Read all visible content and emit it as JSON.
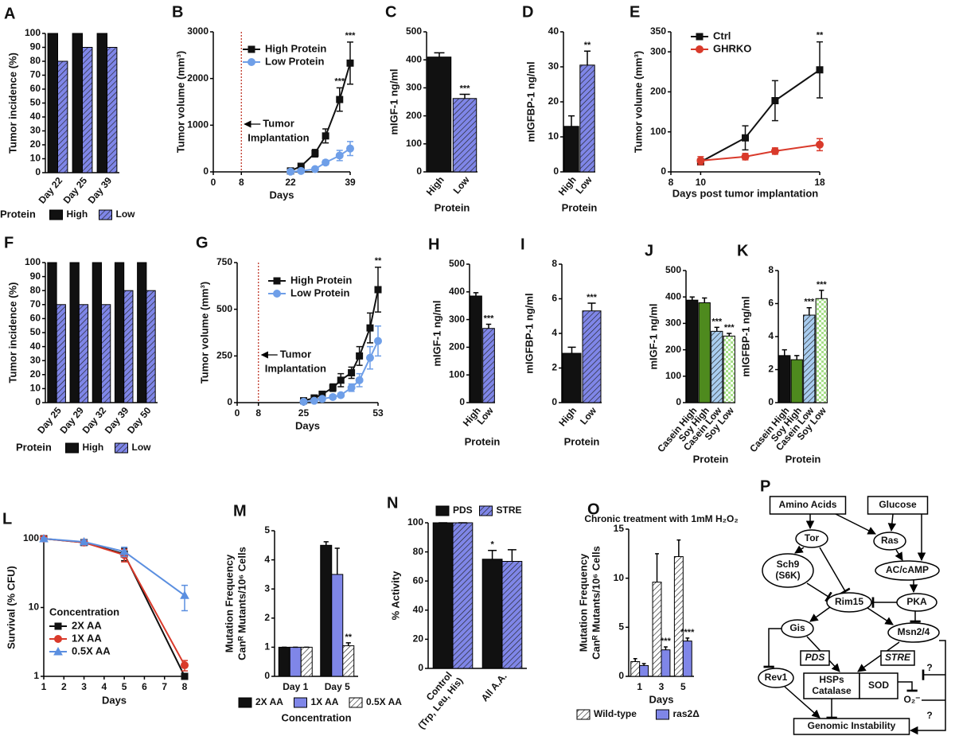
{
  "chart_data": [
    {
      "panel": "A",
      "type": "bar",
      "ylabel": "Tumor incidence (%)",
      "categories": [
        "Day 22",
        "Day 25",
        "Day 39"
      ],
      "series": [
        {
          "name": "High",
          "color": "#111111",
          "values": [
            100,
            100,
            100
          ]
        },
        {
          "name": "Low",
          "color": "#7f86e8",
          "pattern": "hatch",
          "values": [
            80,
            90,
            90
          ]
        }
      ],
      "ylim": [
        0,
        100
      ],
      "yticks": [
        0,
        10,
        20,
        30,
        40,
        50,
        60,
        70,
        80,
        90,
        100
      ],
      "legend": "bottom",
      "legend_title": "Protein"
    },
    {
      "panel": "B",
      "type": "line",
      "xlabel": "Days",
      "ylabel": "Tumor volume (mm³)",
      "x": [
        22,
        25,
        29,
        32,
        36,
        39
      ],
      "series": [
        {
          "name": "High Protein",
          "color": "#111111",
          "marker": "square",
          "values": [
            20,
            120,
            400,
            770,
            1550,
            2330
          ],
          "errors": [
            10,
            30,
            80,
            150,
            250,
            450
          ],
          "sig": [
            null,
            null,
            null,
            null,
            "***",
            "***"
          ]
        },
        {
          "name": "Low Protein",
          "color": "#6f9fe8",
          "marker": "circle",
          "values": [
            5,
            20,
            60,
            200,
            350,
            500
          ],
          "errors": [
            3,
            10,
            20,
            50,
            110,
            150
          ]
        }
      ],
      "xlim": [
        0,
        39
      ],
      "xticks": [
        0,
        8,
        22,
        39
      ],
      "ylim": [
        0,
        3000
      ],
      "yticks": [
        0,
        1000,
        2000,
        3000
      ],
      "vline": 8,
      "vline_label": [
        "Tumor",
        "Implantation"
      ],
      "legend": "upper left"
    },
    {
      "panel": "C",
      "type": "bar",
      "xlabel": "Protein",
      "ylabel": "mIGF-1 ng/ml",
      "categories": [
        "High",
        "Low"
      ],
      "values": [
        410,
        262
      ],
      "errors": [
        15,
        15
      ],
      "sig": [
        null,
        "***"
      ],
      "colors": [
        "#111111",
        "#7f86e8"
      ],
      "patterns": [
        null,
        "hatch"
      ],
      "ylim": [
        0,
        500
      ],
      "yticks": [
        0,
        100,
        200,
        300,
        400,
        500
      ]
    },
    {
      "panel": "D",
      "type": "bar",
      "xlabel": "Protein",
      "ylabel": "mIGFBP-1 ng/ml",
      "categories": [
        "High",
        "Low"
      ],
      "values": [
        13,
        30.5
      ],
      "errors": [
        3,
        4
      ],
      "sig": [
        null,
        "**"
      ],
      "colors": [
        "#111111",
        "#7f86e8"
      ],
      "patterns": [
        null,
        "hatch"
      ],
      "ylim": [
        0,
        40
      ],
      "yticks": [
        0,
        10,
        20,
        30,
        40
      ]
    },
    {
      "panel": "E",
      "type": "line",
      "xlabel": "Days post tumor implantation",
      "ylabel": "Tumor volume (mm³)",
      "x": [
        10,
        13,
        15,
        18
      ],
      "series": [
        {
          "name": "Ctrl",
          "color": "#111111",
          "marker": "square",
          "values": [
            25,
            85,
            178,
            255
          ],
          "errors": [
            5,
            30,
            50,
            70
          ],
          "sig": [
            null,
            null,
            null,
            "**"
          ]
        },
        {
          "name": "GHRKO",
          "color": "#d93a2b",
          "marker": "circle",
          "values": [
            28,
            38,
            52,
            68
          ],
          "errors": [
            10,
            8,
            8,
            15
          ]
        }
      ],
      "xlim": [
        8,
        18
      ],
      "xticks": [
        8,
        10,
        18
      ],
      "ylim": [
        0,
        350
      ],
      "yticks": [
        0,
        100,
        200,
        300,
        350
      ],
      "legend": "upper left"
    },
    {
      "panel": "F",
      "type": "bar",
      "ylabel": "Tumor incidence (%)",
      "categories": [
        "Day 25",
        "Day 29",
        "Day 32",
        "Day 39",
        "Day 50"
      ],
      "series": [
        {
          "name": "High",
          "color": "#111111",
          "values": [
            100,
            100,
            100,
            100,
            100
          ]
        },
        {
          "name": "Low",
          "color": "#7f86e8",
          "pattern": "hatch",
          "values": [
            70,
            70,
            70,
            80,
            80
          ]
        }
      ],
      "ylim": [
        0,
        100
      ],
      "yticks": [
        0,
        10,
        20,
        30,
        40,
        50,
        60,
        70,
        80,
        90,
        100
      ],
      "legend": "bottom",
      "legend_title": "Protein"
    },
    {
      "panel": "G",
      "type": "line",
      "xlabel": "Days",
      "ylabel": "Tumor volume (mm³)",
      "x": [
        25,
        29,
        32,
        36,
        39,
        43,
        46,
        50,
        53
      ],
      "series": [
        {
          "name": "High Protein",
          "color": "#111111",
          "marker": "square",
          "values": [
            10,
            25,
            45,
            80,
            120,
            160,
            250,
            400,
            605
          ],
          "errors": [
            5,
            8,
            10,
            20,
            35,
            30,
            50,
            80,
            120
          ],
          "sig": [
            null,
            null,
            null,
            null,
            null,
            null,
            null,
            null,
            "**"
          ]
        },
        {
          "name": "Low Protein",
          "color": "#6f9fe8",
          "marker": "circle",
          "values": [
            5,
            10,
            20,
            30,
            40,
            80,
            120,
            240,
            330
          ],
          "errors": [
            3,
            5,
            5,
            8,
            10,
            20,
            35,
            60,
            80
          ]
        }
      ],
      "xlim": [
        0,
        53
      ],
      "xticks": [
        0,
        8,
        25,
        53
      ],
      "ylim": [
        0,
        750
      ],
      "yticks": [
        0,
        250,
        500,
        750
      ],
      "vline": 8,
      "vline_label": [
        "Tumor",
        "Implantation"
      ],
      "legend": "upper left"
    },
    {
      "panel": "H",
      "type": "bar",
      "xlabel": "Protein",
      "ylabel": "mIGF-1 ng/ml",
      "categories": [
        "High",
        "Low"
      ],
      "values": [
        385,
        268
      ],
      "errors": [
        12,
        15
      ],
      "sig": [
        null,
        "***"
      ],
      "colors": [
        "#111111",
        "#7f86e8"
      ],
      "patterns": [
        null,
        "hatch"
      ],
      "ylim": [
        0,
        500
      ],
      "yticks": [
        0,
        100,
        200,
        300,
        400,
        500
      ]
    },
    {
      "panel": "I",
      "type": "bar",
      "xlabel": "Protein",
      "ylabel": "mIGFBP-1 ng/ml",
      "categories": [
        "High",
        "Low"
      ],
      "values": [
        2.85,
        5.3
      ],
      "errors": [
        0.35,
        0.45
      ],
      "sig": [
        null,
        "***"
      ],
      "colors": [
        "#111111",
        "#7f86e8"
      ],
      "patterns": [
        null,
        "hatch"
      ],
      "ylim": [
        0,
        8
      ],
      "yticks": [
        0,
        2,
        4,
        6,
        8
      ]
    },
    {
      "panel": "J",
      "type": "bar",
      "xlabel": "Protein",
      "ylabel": "mIGF-1 ng/ml",
      "categories": [
        "Casein High",
        "Soy High",
        "Casein Low",
        "Soy Low"
      ],
      "values": [
        388,
        378,
        270,
        252
      ],
      "errors": [
        12,
        18,
        15,
        10
      ],
      "sig": [
        null,
        null,
        "***",
        "***"
      ],
      "colors": [
        "#111111",
        "#4e8a1e",
        "#a9cdf0",
        "#a8e08a"
      ],
      "patterns": [
        null,
        null,
        "hatch",
        "check"
      ],
      "ylim": [
        0,
        500
      ],
      "yticks": [
        0,
        100,
        200,
        300,
        400,
        500
      ]
    },
    {
      "panel": "K",
      "type": "bar",
      "xlabel": "Protein",
      "ylabel": "mIGFBP-1 ng/ml",
      "categories": [
        "Casein High",
        "Soy High",
        "Casein Low",
        "Soy Low"
      ],
      "values": [
        2.85,
        2.6,
        5.3,
        6.3
      ],
      "errors": [
        0.35,
        0.25,
        0.45,
        0.5
      ],
      "sig": [
        null,
        null,
        "***",
        "***"
      ],
      "colors": [
        "#111111",
        "#4e8a1e",
        "#a9cdf0",
        "#a8e08a"
      ],
      "patterns": [
        null,
        null,
        "hatch",
        "check"
      ],
      "ylim": [
        0,
        8
      ],
      "yticks": [
        0,
        2,
        4,
        6,
        8
      ]
    },
    {
      "panel": "L",
      "type": "line",
      "xlabel": "Days",
      "ylabel": "Survival (% CFU)",
      "x": [
        1,
        3,
        5,
        8
      ],
      "series": [
        {
          "name": "2X AA",
          "color": "#111111",
          "marker": "square",
          "values": [
            100,
            88,
            60,
            1
          ],
          "errors": [
            3,
            6,
            12,
            0
          ]
        },
        {
          "name": "1X AA",
          "color": "#d93a2b",
          "marker": "circle",
          "values": [
            100,
            88,
            58,
            1.45
          ],
          "errors": [
            3,
            6,
            12,
            0.25
          ]
        },
        {
          "name": "0.5X AA",
          "color": "#5b8fe0",
          "marker": "triangle",
          "values": [
            100,
            90,
            65,
            15
          ],
          "errors": [
            3,
            6,
            10,
            6
          ]
        }
      ],
      "xlim": [
        1,
        8
      ],
      "xticks": [
        1,
        2,
        3,
        4,
        5,
        6,
        7,
        8
      ],
      "ylim": [
        1,
        100
      ],
      "yticks": [
        1,
        10,
        100
      ],
      "log_y": true,
      "legend": "lower left",
      "legend_title": "Concentration"
    },
    {
      "panel": "M",
      "type": "bar",
      "xlabel": "Concentration",
      "ylabel": [
        "Mutation Frequency",
        "Canᴿ Mutants/10⁶ Cells"
      ],
      "categories": [
        "Day 1",
        "Day 5"
      ],
      "series": [
        {
          "name": "2X AA",
          "color": "#111111",
          "values": [
            1,
            4.5
          ],
          "errors": [
            0,
            0.12
          ]
        },
        {
          "name": "1X AA",
          "color": "#7f86e8",
          "values": [
            1,
            3.5
          ],
          "errors": [
            0,
            0.9
          ]
        },
        {
          "name": "0.5X AA",
          "color": "#ffffff",
          "pattern": "hatch",
          "values": [
            1,
            1.05
          ],
          "errors": [
            0,
            0.1
          ],
          "sig": [
            null,
            "**"
          ]
        }
      ],
      "ylim": [
        0,
        5
      ],
      "yticks": [
        0,
        1,
        2,
        3,
        4,
        5
      ],
      "legend": "bottom"
    },
    {
      "panel": "N",
      "type": "bar",
      "ylabel": "% Activity",
      "categories": [
        "Control (Trp, Leu, His)",
        "All A.A."
      ],
      "series": [
        {
          "name": "PDS",
          "color": "#111111",
          "values": [
            100,
            75
          ],
          "errors": [
            0,
            6
          ],
          "sig": [
            null,
            "*"
          ]
        },
        {
          "name": "STRE",
          "color": "#7f86e8",
          "pattern": "hatch",
          "values": [
            100,
            73.5
          ],
          "errors": [
            0,
            8
          ]
        }
      ],
      "ylim": [
        0,
        100
      ],
      "yticks": [
        0,
        20,
        40,
        60,
        80,
        100
      ],
      "legend": "top"
    },
    {
      "panel": "O",
      "type": "bar",
      "title": "Chronic treatment with 1mM H₂O₂",
      "xlabel": "Days",
      "ylabel": [
        "Mutation Frequency",
        "Canᴿ Mutants/10⁶ Cells"
      ],
      "categories": [
        "1",
        "3",
        "5"
      ],
      "series": [
        {
          "name": "Wild-type",
          "color": "#ffffff",
          "pattern": "hatch",
          "values": [
            1.5,
            9.6,
            12.2
          ],
          "errors": [
            0.3,
            2.9,
            1.7
          ]
        },
        {
          "name": "ras2Δ",
          "color": "#7f86e8",
          "values": [
            1.1,
            2.7,
            3.6
          ],
          "errors": [
            0.2,
            0.3,
            0.3
          ],
          "sig": [
            null,
            "***",
            "****"
          ]
        }
      ],
      "ylim": [
        0,
        15
      ],
      "yticks": [
        0,
        5,
        10,
        15
      ],
      "legend": "bottom"
    }
  ],
  "diagram": {
    "panel": "P",
    "nodes": [
      {
        "label": "Amino Acids"
      },
      {
        "label": "Glucose"
      },
      {
        "label": "Tor"
      },
      {
        "label": "Ras"
      },
      {
        "label": [
          "Sch9",
          "(S6K)"
        ]
      },
      {
        "label": "AC/cAMP"
      },
      {
        "label": "Rim15"
      },
      {
        "label": "PKA"
      },
      {
        "label": "Gis"
      },
      {
        "label": "Msn2/4"
      },
      {
        "label": "PDS"
      },
      {
        "label": "STRE"
      },
      {
        "label": "Rev1"
      },
      {
        "label": [
          "HSPs",
          "Catalase"
        ]
      },
      {
        "label": "SOD"
      },
      {
        "label": "O₂⁻"
      },
      {
        "label": "Genomic Instability"
      },
      {
        "label": "?"
      },
      {
        "label": "?"
      }
    ]
  }
}
